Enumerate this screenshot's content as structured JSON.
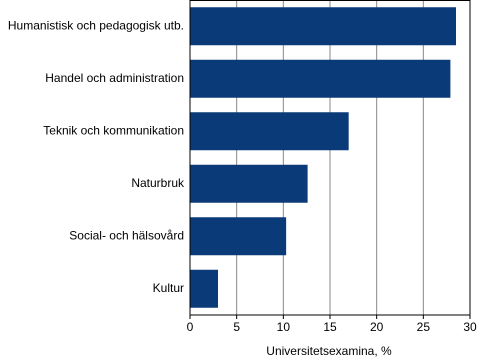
{
  "chart_data": {
    "type": "bar",
    "orientation": "horizontal",
    "xlabel": "Universitetsexamina, %",
    "categories": [
      "Humanistisk och pedagogisk utb.",
      "Handel och administration",
      "Teknik och kommunikation",
      "Naturbruk",
      "Social- och hälsovård",
      "Kultur"
    ],
    "values": [
      28.5,
      27.9,
      17.0,
      12.6,
      10.3,
      3.0
    ],
    "color": "#0b3a78",
    "xlim": [
      0,
      30
    ],
    "xticks": [
      0,
      5,
      10,
      15,
      20,
      25,
      30
    ],
    "grid": true
  }
}
